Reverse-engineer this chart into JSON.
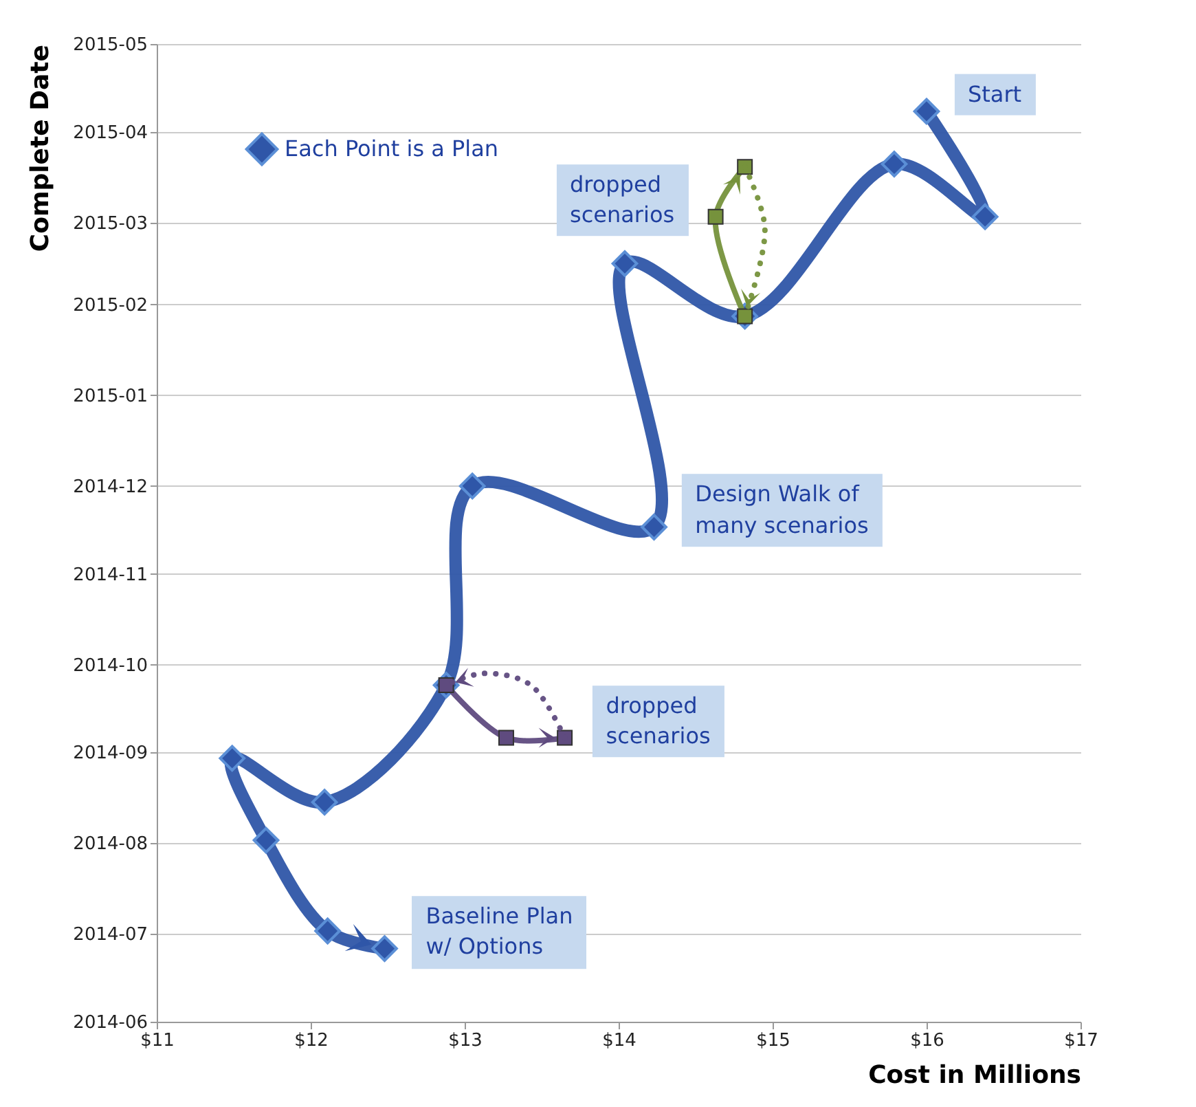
{
  "chart_data": {
    "type": "line",
    "orientation": "horizontal",
    "xlabel": "Cost in Millions",
    "ylabel": "Complete Date",
    "xlim": [
      11,
      17
    ],
    "xticks": [
      {
        "value": 11,
        "label": "$11"
      },
      {
        "value": 12,
        "label": "$12"
      },
      {
        "value": 13,
        "label": "$13"
      },
      {
        "value": 14,
        "label": "$14"
      },
      {
        "value": 15,
        "label": "$15"
      },
      {
        "value": 16,
        "label": "$16"
      },
      {
        "value": 17,
        "label": "$17"
      }
    ],
    "ylim": [
      "2014-06",
      "2015-05"
    ],
    "yticks": [
      "2014-06",
      "2014-07",
      "2014-08",
      "2014-09",
      "2014-10",
      "2014-11",
      "2014-12",
      "2015-01",
      "2015-02",
      "2015-03",
      "2015-04",
      "2015-05"
    ],
    "grid": "y",
    "legend": "top left",
    "series": [
      {
        "name": "Each Point is a Plan",
        "color": "#2f56a8",
        "marker": "diamond",
        "x": [
          "2015-04-08",
          "2015-03-03",
          "2015-03-21",
          "2015-01-28",
          "2015-02-15",
          "2014-11-17",
          "2014-12-01",
          "2014-09-24",
          "2014-08-15",
          "2014-08-30",
          "2014-08-02",
          "2014-07-02",
          "2014-06-26"
        ],
        "values": [
          16.0,
          16.38,
          15.79,
          14.82,
          14.04,
          14.23,
          13.05,
          12.88,
          12.09,
          11.49,
          11.71,
          12.11,
          12.48
        ]
      },
      {
        "color": "#76923c",
        "marker": "square",
        "x": [
          "2015-01-28",
          "2015-03-03",
          "2015-03-20"
        ],
        "values": [
          14.82,
          14.63,
          14.82
        ]
      },
      {
        "color": "#5f4b7f",
        "marker": "square",
        "x": [
          "2014-09-24",
          "2014-09-06",
          "2014-09-06"
        ],
        "values": [
          12.88,
          13.27,
          13.65
        ]
      },
      {
        "color": "#76923c",
        "marker": "none",
        "line_style": "dotted",
        "x": [
          "2015-03-20",
          "2015-02-27",
          "2015-01-28"
        ],
        "values": [
          14.82,
          14.95,
          14.82
        ]
      },
      {
        "color": "#5f4b7f",
        "marker": "none",
        "line_style": "dotted",
        "x": [
          "2014-09-06",
          "2014-09-24",
          "2014-09-28",
          "2014-09-24"
        ],
        "values": [
          13.65,
          13.43,
          13.12,
          12.88
        ]
      }
    ],
    "annotations": [
      {
        "text": "Start",
        "x": 16.0,
        "y": "2015-04-08"
      },
      {
        "text": "Design Walk of\nmany scenarios",
        "x": 14.23,
        "y": "2014-11-17"
      },
      {
        "text": "Baseline Plan\nw/ Options",
        "x": 12.48,
        "y": "2014-06-26"
      },
      {
        "text": "dropped\nscenarios",
        "x": 14.63,
        "y": "2015-03-03"
      },
      {
        "text": "dropped\nscenarios",
        "x": 13.65,
        "y": "2014-09-06"
      }
    ]
  }
}
